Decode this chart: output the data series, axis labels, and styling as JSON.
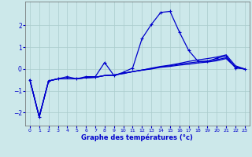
{
  "xlabel": "Graphe des températures (°c)",
  "background_color": "#cce8ea",
  "grid_color": "#aacccc",
  "line_color": "#0000cc",
  "xlim": [
    -0.5,
    23.5
  ],
  "ylim": [
    -2.6,
    3.1
  ],
  "yticks": [
    -2,
    -1,
    0,
    1,
    2
  ],
  "xticks": [
    0,
    1,
    2,
    3,
    4,
    5,
    6,
    7,
    8,
    9,
    10,
    11,
    12,
    13,
    14,
    15,
    16,
    17,
    18,
    19,
    20,
    21,
    22,
    23
  ],
  "hours": [
    0,
    1,
    2,
    3,
    4,
    5,
    6,
    7,
    8,
    9,
    10,
    11,
    12,
    13,
    14,
    15,
    16,
    17,
    18,
    19,
    20,
    21,
    22,
    23
  ],
  "curve_main": [
    -0.5,
    -2.2,
    -0.55,
    -0.45,
    -0.35,
    -0.45,
    -0.35,
    -0.35,
    0.3,
    -0.3,
    -0.15,
    0.05,
    1.4,
    2.05,
    2.6,
    2.65,
    1.7,
    0.85,
    0.35,
    0.35,
    0.5,
    0.6,
    0.05,
    0.0
  ],
  "curve2": [
    -0.5,
    -2.2,
    -0.55,
    -0.45,
    -0.45,
    -0.45,
    -0.4,
    -0.38,
    -0.3,
    -0.28,
    -0.2,
    -0.12,
    -0.05,
    0.0,
    0.08,
    0.12,
    0.18,
    0.22,
    0.28,
    0.32,
    0.38,
    0.48,
    0.08,
    0.0
  ],
  "curve3": [
    -0.5,
    -2.2,
    -0.55,
    -0.45,
    -0.45,
    -0.45,
    -0.4,
    -0.38,
    -0.3,
    -0.28,
    -0.2,
    -0.12,
    -0.05,
    0.02,
    0.1,
    0.15,
    0.22,
    0.28,
    0.33,
    0.37,
    0.43,
    0.52,
    0.1,
    0.0
  ],
  "curve4": [
    -0.5,
    -2.2,
    -0.55,
    -0.45,
    -0.45,
    -0.45,
    -0.4,
    -0.38,
    -0.3,
    -0.28,
    -0.2,
    -0.12,
    -0.05,
    0.04,
    0.12,
    0.18,
    0.26,
    0.35,
    0.42,
    0.48,
    0.55,
    0.65,
    0.15,
    0.0
  ]
}
